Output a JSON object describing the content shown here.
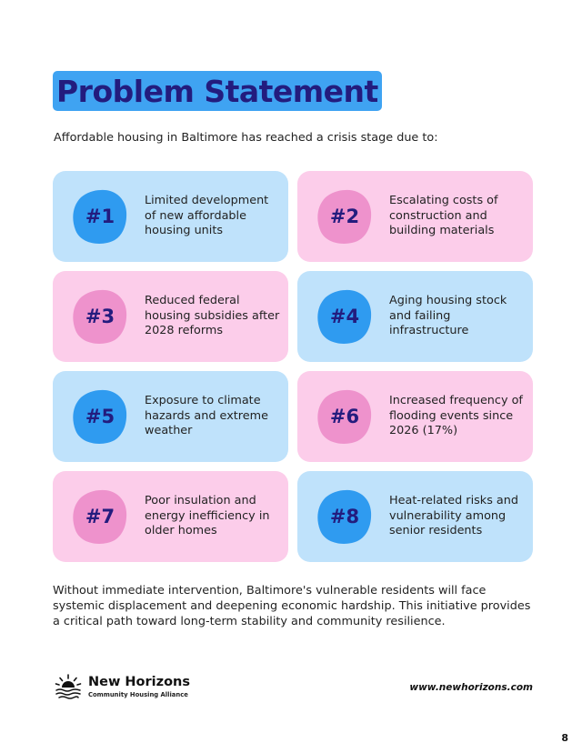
{
  "title": "Problem Statement",
  "intro": "Affordable housing in Baltimore has reached a crisis stage due to:",
  "colors": {
    "title_bg": "#3fa3f2",
    "title_text": "#231c7e",
    "card_blue": "#bfe2fb",
    "card_pink": "#fccdea",
    "blob_blue": "#2f9bf0",
    "blob_pink": "#ee92cc"
  },
  "cards": [
    {
      "number": "#1",
      "text": "Limited development of new affordable housing units",
      "theme": "blue"
    },
    {
      "number": "#2",
      "text": "Escalating costs of construction and building materials",
      "theme": "pink"
    },
    {
      "number": "#3",
      "text": "Reduced federal housing subsidies after 2028 reforms",
      "theme": "pink"
    },
    {
      "number": "#4",
      "text": "Aging housing stock and failing infrastructure",
      "theme": "blue"
    },
    {
      "number": "#5",
      "text": "Exposure to climate hazards and extreme weather",
      "theme": "blue"
    },
    {
      "number": "#6",
      "text": "Increased frequency of flooding events since 2026 (17%)",
      "theme": "pink"
    },
    {
      "number": "#7",
      "text": "Poor insulation and energy inefficiency in older homes",
      "theme": "pink"
    },
    {
      "number": "#8",
      "text": "Heat-related risks and vulnerability among senior residents",
      "theme": "blue"
    }
  ],
  "closing": "Without immediate intervention, Baltimore's vulnerable residents will face systemic displacement and deepening economic hardship. This initiative provides a critical path toward long-term stability and community resilience.",
  "footer": {
    "logo_icon": "sunrise-waves-icon",
    "org_name": "New Horizons",
    "org_subtitle": "Community Housing Alliance",
    "website": "www.newhorizons.com",
    "page_number": "8"
  }
}
